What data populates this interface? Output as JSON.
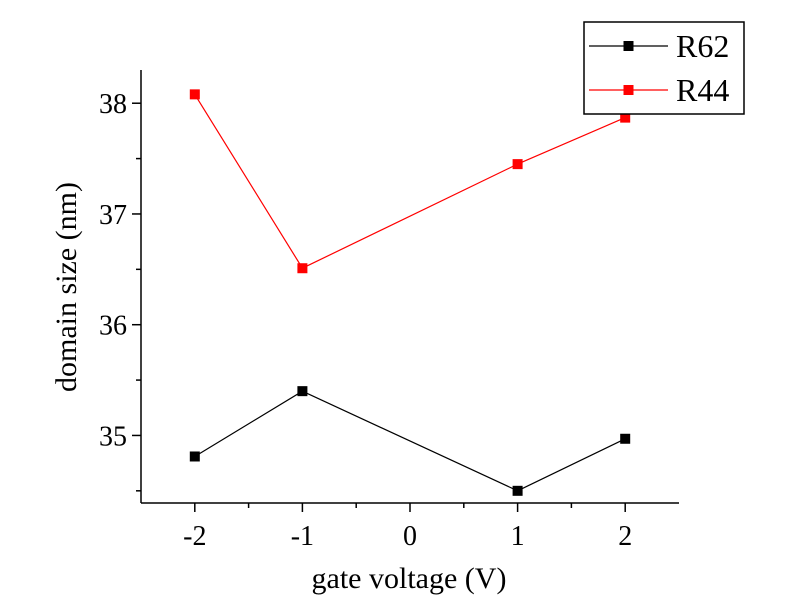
{
  "chart_data": {
    "type": "line",
    "x_label": "gate voltage (V)",
    "y_label": "domain size (nm)",
    "x_range": [
      -2.5,
      2.5
    ],
    "y_range": [
      34.39,
      38.3
    ],
    "x_ticks": [
      -2,
      -1,
      0,
      1,
      2
    ],
    "x_tick_labels": [
      "-2",
      "-1",
      "0",
      "1",
      "2"
    ],
    "y_ticks": [
      35,
      36,
      37,
      38
    ],
    "y_tick_labels": [
      "35",
      "36",
      "37",
      "38"
    ],
    "grid": false,
    "legend_position": "top-right",
    "marker": "square",
    "series": [
      {
        "name": "R62",
        "color": "#000000",
        "x": [
          -2,
          -1,
          1,
          2
        ],
        "y": [
          34.81,
          35.4,
          34.5,
          34.97
        ]
      },
      {
        "name": "R44",
        "color": "#ff0000",
        "x": [
          -2,
          -1,
          1,
          2
        ],
        "y": [
          38.08,
          36.51,
          37.45,
          37.87
        ]
      }
    ]
  }
}
